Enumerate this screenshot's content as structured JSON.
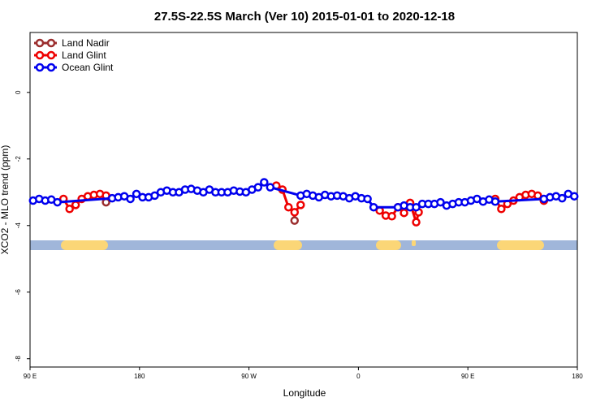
{
  "chart_data": {
    "type": "line",
    "title": "27.5S-22.5S March (Ver 10)   2015-01-01 to 2020-12-18",
    "x_label": "Longitude",
    "y_label": "XCO2 - MLO trend (ppm)",
    "xlim": [
      90,
      540
    ],
    "ylim": [
      -8.25,
      1.8
    ],
    "xticks": [
      {
        "value": 90,
        "label": "90 E"
      },
      180,
      {
        "value": 270,
        "label": "90 W"
      },
      {
        "value": 360,
        "label": "0"
      },
      {
        "value": 450,
        "label": "90 E"
      },
      {
        "value": 540,
        "label": "180"
      }
    ],
    "yticks": [
      0,
      -2,
      -4,
      -6,
      -8
    ],
    "legend": "top-left",
    "series": [
      {
        "name": "Land Nadir",
        "color": "#9b2d2d",
        "x": [
          152.5,
          null,
          307.5,
          null,
          512.5
        ],
        "values": [
          -3.3,
          null,
          -3.85,
          null,
          -3.25
        ]
      },
      {
        "name": "Land Glint",
        "color": "#ee0000",
        "x": [
          117.5,
          122.5,
          127.5,
          132.5,
          137.5,
          142.5,
          147.5,
          152.5,
          null,
          292.5,
          297.5,
          302.5,
          307.5,
          312.5,
          null,
          377.5,
          382.5,
          387.5,
          392.5,
          397.5,
          402.5,
          407.5,
          409.5,
          null,
          472.5,
          477.5,
          482.5,
          487.5,
          492.5,
          497.5,
          502.5,
          507.5,
          512.5
        ],
        "values": [
          -3.2,
          -3.5,
          -3.38,
          -3.2,
          -3.12,
          -3.08,
          -3.05,
          -3.1,
          null,
          -2.8,
          -2.92,
          -3.45,
          -3.6,
          -3.38,
          null,
          -3.55,
          -3.7,
          -3.72,
          -3.45,
          -3.62,
          -3.32,
          -3.9,
          -3.6,
          null,
          -3.2,
          -3.5,
          -3.35,
          -3.25,
          -3.15,
          -3.08,
          -3.05,
          -3.1,
          -3.25
        ]
      },
      {
        "name": "Ocean Glint",
        "color": "#0000ee",
        "x": [
          92.5,
          97.5,
          102.5,
          107.5,
          112.5,
          157.5,
          162.5,
          167.5,
          172.5,
          177.5,
          182.5,
          187.5,
          192.5,
          197.5,
          202.5,
          207.5,
          212.5,
          217.5,
          222.5,
          227.5,
          232.5,
          237.5,
          242.5,
          247.5,
          252.5,
          257.5,
          262.5,
          267.5,
          272.5,
          277.5,
          282.5,
          287.5,
          312.5,
          317.5,
          322.5,
          327.5,
          332.5,
          337.5,
          342.5,
          347.5,
          352.5,
          357.5,
          362.5,
          367.5,
          372.5,
          392.5,
          397.5,
          402.5,
          407.5,
          412.5,
          417.5,
          422.5,
          427.5,
          432.5,
          437.5,
          442.5,
          447.5,
          452.5,
          457.5,
          462.5,
          467.5,
          472.5,
          512.5,
          517.5,
          522.5,
          527.5,
          532.5,
          537.5
        ],
        "values": [
          -3.25,
          -3.2,
          -3.25,
          -3.22,
          -3.3,
          -3.18,
          -3.15,
          -3.12,
          -3.2,
          -3.05,
          -3.15,
          -3.15,
          -3.1,
          -3.0,
          -2.95,
          -3.0,
          -3.0,
          -2.92,
          -2.9,
          -2.95,
          -3.0,
          -2.92,
          -3.0,
          -3.0,
          -3.0,
          -2.95,
          -2.98,
          -3.0,
          -2.92,
          -2.85,
          -2.7,
          -2.85,
          -3.1,
          -3.05,
          -3.1,
          -3.15,
          -3.08,
          -3.12,
          -3.1,
          -3.12,
          -3.18,
          -3.12,
          -3.18,
          -3.2,
          -3.45,
          -3.45,
          -3.4,
          -3.45,
          -3.45,
          -3.35,
          -3.35,
          -3.35,
          -3.3,
          -3.4,
          -3.35,
          -3.3,
          -3.3,
          -3.25,
          -3.2,
          -3.28,
          -3.22,
          -3.28,
          -3.2,
          -3.15,
          -3.12,
          -3.18,
          -3.05,
          -3.12
        ]
      }
    ]
  }
}
